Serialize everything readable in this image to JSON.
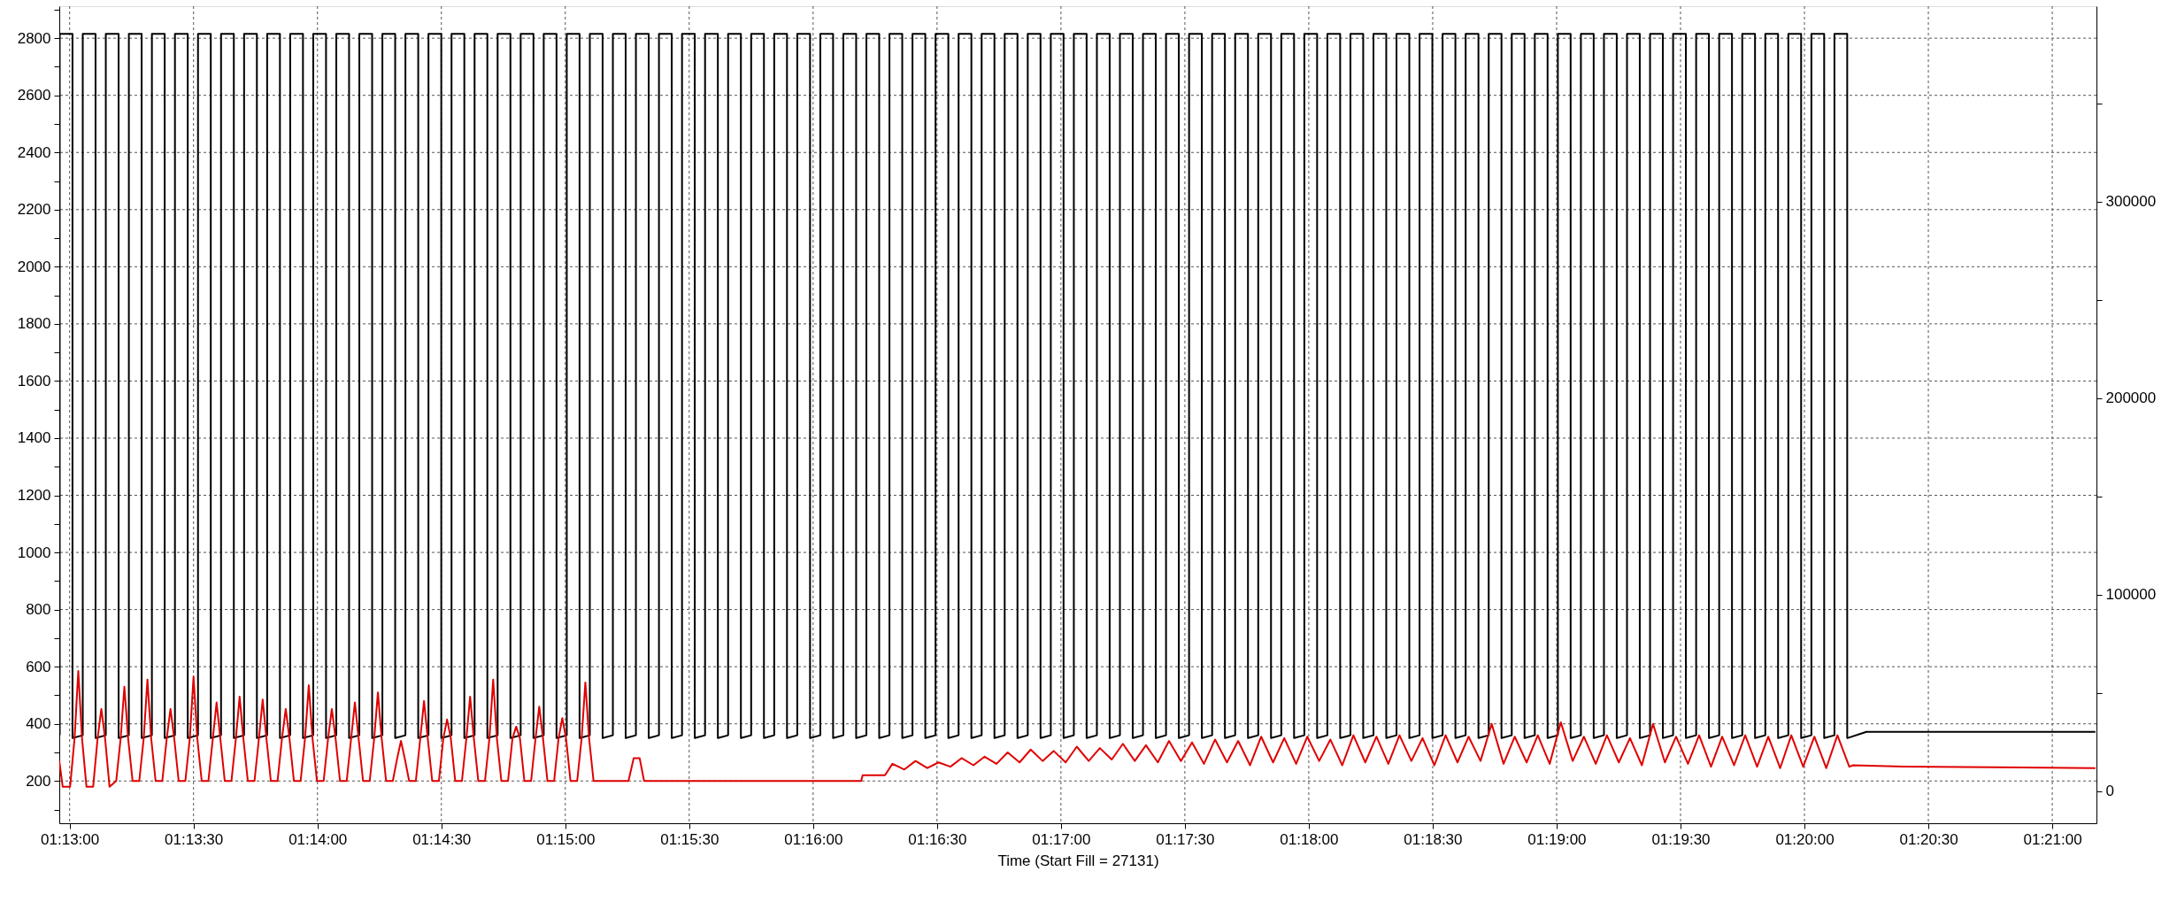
{
  "chart_data": {
    "type": "line",
    "xlabel": "Time (Start Fill = 27131)",
    "xlim": [
      1.215972,
      1.352972
    ],
    "xticks": [
      {
        "value": 1.2166667,
        "label": "01:13:00"
      },
      {
        "value": 1.225,
        "label": "01:13:30"
      },
      {
        "value": 1.2333333,
        "label": "01:14:00"
      },
      {
        "value": 1.2416667,
        "label": "01:14:30"
      },
      {
        "value": 1.25,
        "label": "01:15:00"
      },
      {
        "value": 1.2583333,
        "label": "01:15:30"
      },
      {
        "value": 1.2666667,
        "label": "01:16:00"
      },
      {
        "value": 1.275,
        "label": "01:16:30"
      },
      {
        "value": 1.2833333,
        "label": "01:17:00"
      },
      {
        "value": 1.2916667,
        "label": "01:17:30"
      },
      {
        "value": 1.3,
        "label": "01:18:00"
      },
      {
        "value": 1.3083333,
        "label": "01:18:30"
      },
      {
        "value": 1.3166667,
        "label": "01:19:00"
      },
      {
        "value": 1.325,
        "label": "01:19:30"
      },
      {
        "value": 1.3333333,
        "label": "01:20:00"
      },
      {
        "value": 1.3416667,
        "label": "01:20:30"
      },
      {
        "value": 1.35,
        "label": "01:21:00"
      }
    ],
    "ylim": [
      52,
      2912
    ],
    "yticks": [
      {
        "value": 100,
        "label": null
      },
      200,
      {
        "value": 300,
        "label": null
      },
      400,
      {
        "value": 500,
        "label": null
      },
      600,
      {
        "value": 700,
        "label": null
      },
      800,
      {
        "value": 900,
        "label": null
      },
      1000,
      {
        "value": 1100,
        "label": null
      },
      1200,
      {
        "value": 1300,
        "label": null
      },
      1400,
      {
        "value": 1500,
        "label": null
      },
      1600,
      {
        "value": 1700,
        "label": null
      },
      1800,
      {
        "value": 1900,
        "label": null
      },
      2000,
      {
        "value": 2100,
        "label": null
      },
      2200,
      {
        "value": 2300,
        "label": null
      },
      2400,
      {
        "value": 2500,
        "label": null
      },
      2600,
      {
        "value": 2700,
        "label": null
      },
      2800,
      {
        "value": 2900,
        "label": null
      }
    ],
    "y2lim": [
      -16250,
      399500
    ],
    "y2ticks": [
      0,
      {
        "value": 50000,
        "label": null
      },
      100000,
      {
        "value": 150000,
        "label": null
      },
      200000,
      {
        "value": 250000,
        "label": null
      },
      300000,
      {
        "value": 350000,
        "label": null
      }
    ],
    "grid": true,
    "series": [
      {
        "color": "#000000",
        "x": [
          1.216,
          1.216,
          1.21686,
          1.21686,
          1.21755,
          1.21755,
          1.21841,
          1.21841,
          1.2191,
          1.2191,
          1.21996,
          1.21996,
          1.22065,
          1.22065,
          1.22151,
          1.22151,
          1.2222,
          1.2222,
          1.22306,
          1.22306,
          1.22375,
          1.22375,
          1.22461,
          1.22461,
          1.2253,
          1.2253,
          1.22616,
          1.22616,
          1.22685,
          1.22685,
          1.22771,
          1.22771,
          1.2284,
          1.2284,
          1.22926,
          1.22926,
          1.22995,
          1.22995,
          1.23081,
          1.23081,
          1.2315,
          1.2315,
          1.23236,
          1.23236,
          1.23305,
          1.23305,
          1.23391,
          1.23391,
          1.2346,
          1.2346,
          1.23546,
          1.23546,
          1.23615,
          1.23615,
          1.23701,
          1.23701,
          1.2377,
          1.2377,
          1.23856,
          1.23856,
          1.23925,
          1.23925,
          1.24011,
          1.24011,
          1.2408,
          1.2408,
          1.24166,
          1.24166,
          1.24235,
          1.24235,
          1.24321,
          1.24321,
          1.2439,
          1.2439,
          1.24476,
          1.24476,
          1.24545,
          1.24545,
          1.24631,
          1.24631,
          1.247,
          1.247,
          1.24786,
          1.24786,
          1.24855,
          1.24855,
          1.24941,
          1.24941,
          1.2501,
          1.2501,
          1.25096,
          1.25096,
          1.25165,
          1.25165,
          1.25251,
          1.25251,
          1.2532,
          1.2532,
          1.25406,
          1.25406,
          1.25475,
          1.25475,
          1.25561,
          1.25561,
          1.2563,
          1.2563,
          1.25716,
          1.25716,
          1.25785,
          1.25785,
          1.25871,
          1.25871,
          1.2594,
          1.2594,
          1.26026,
          1.26026,
          1.26095,
          1.26095,
          1.26181,
          1.26181,
          1.2625,
          1.2625,
          1.26336,
          1.26336,
          1.26405,
          1.26405,
          1.26491,
          1.26491,
          1.2656,
          1.2656,
          1.26646,
          1.26646,
          1.26715,
          1.26715,
          1.26801,
          1.26801,
          1.2687,
          1.2687,
          1.26956,
          1.26956,
          1.27025,
          1.27025,
          1.27111,
          1.27111,
          1.2718,
          1.2718,
          1.27266,
          1.27266,
          1.27335,
          1.27335,
          1.27421,
          1.27421,
          1.2749,
          1.2749,
          1.27576,
          1.27576,
          1.27645,
          1.27645,
          1.27731,
          1.27731,
          1.278,
          1.278,
          1.27886,
          1.27886,
          1.27955,
          1.27955,
          1.28041,
          1.28041,
          1.2811,
          1.2811,
          1.28196,
          1.28196,
          1.28265,
          1.28265,
          1.28351,
          1.28351,
          1.2842,
          1.2842,
          1.28506,
          1.28506,
          1.28575,
          1.28575,
          1.28661,
          1.28661,
          1.2873,
          1.2873,
          1.28816,
          1.28816,
          1.28885,
          1.28885,
          1.28971,
          1.28971,
          1.2904,
          1.2904,
          1.29126,
          1.29126,
          1.29195,
          1.29195,
          1.29281,
          1.29281,
          1.2935,
          1.2935,
          1.29436,
          1.29436,
          1.29505,
          1.29505,
          1.29591,
          1.29591,
          1.2966,
          1.2966,
          1.29746,
          1.29746,
          1.29815,
          1.29815,
          1.29901,
          1.29901,
          1.2997,
          1.2997,
          1.30056,
          1.30056,
          1.30125,
          1.30125,
          1.30211,
          1.30211,
          1.3028,
          1.3028,
          1.30366,
          1.30366,
          1.30435,
          1.30435,
          1.30521,
          1.30521,
          1.3059,
          1.3059,
          1.30676,
          1.30676,
          1.30745,
          1.30745,
          1.30831,
          1.30831,
          1.309,
          1.309,
          1.30986,
          1.30986,
          1.31055,
          1.31055,
          1.31141,
          1.31141,
          1.3121,
          1.3121,
          1.31296,
          1.31296,
          1.31365,
          1.31365,
          1.31451,
          1.31451,
          1.3152,
          1.3152,
          1.31606,
          1.31606,
          1.31675,
          1.31675,
          1.31761,
          1.31761,
          1.3183,
          1.3183,
          1.31916,
          1.31916,
          1.31985,
          1.31985,
          1.32071,
          1.32071,
          1.3214,
          1.3214,
          1.32226,
          1.32226,
          1.32295,
          1.32295,
          1.32381,
          1.32381,
          1.3245,
          1.3245,
          1.32536,
          1.32536,
          1.32605,
          1.32605,
          1.32691,
          1.32691,
          1.3276,
          1.3276,
          1.32846,
          1.32846,
          1.32915,
          1.32915,
          1.33001,
          1.33001,
          1.3307,
          1.3307,
          1.33156,
          1.33156,
          1.33225,
          1.33225,
          1.33311,
          1.33311,
          1.3338,
          1.3338,
          1.33466,
          1.33466,
          1.33535,
          1.33535,
          1.33621,
          1.33621,
          1.3375,
          1.3529
        ],
        "values": [
          360,
          2815,
          2815,
          350,
          360,
          2815,
          2815,
          350,
          360,
          2815,
          2815,
          350,
          360,
          2815,
          2815,
          350,
          360,
          2815,
          2815,
          350,
          360,
          2815,
          2815,
          350,
          360,
          2815,
          2815,
          350,
          360,
          2815,
          2815,
          350,
          360,
          2815,
          2815,
          350,
          360,
          2815,
          2815,
          350,
          360,
          2815,
          2815,
          350,
          360,
          2815,
          2815,
          350,
          360,
          2815,
          2815,
          350,
          360,
          2815,
          2815,
          350,
          360,
          2815,
          2815,
          350,
          360,
          2815,
          2815,
          350,
          360,
          2815,
          2815,
          350,
          360,
          2815,
          2815,
          350,
          360,
          2815,
          2815,
          350,
          360,
          2815,
          2815,
          350,
          360,
          2815,
          2815,
          350,
          360,
          2815,
          2815,
          350,
          360,
          2815,
          2815,
          350,
          360,
          2815,
          2815,
          350,
          360,
          2815,
          2815,
          350,
          360,
          2815,
          2815,
          350,
          360,
          2815,
          2815,
          350,
          360,
          2815,
          2815,
          350,
          360,
          2815,
          2815,
          350,
          360,
          2815,
          2815,
          350,
          360,
          2815,
          2815,
          350,
          360,
          2815,
          2815,
          350,
          360,
          2815,
          2815,
          350,
          360,
          2815,
          2815,
          350,
          360,
          2815,
          2815,
          350,
          360,
          2815,
          2815,
          350,
          360,
          2815,
          2815,
          350,
          360,
          2815,
          2815,
          350,
          360,
          2815,
          2815,
          350,
          360,
          2815,
          2815,
          350,
          360,
          2815,
          2815,
          350,
          360,
          2815,
          2815,
          350,
          360,
          2815,
          2815,
          350,
          360,
          2815,
          2815,
          350,
          360,
          2815,
          2815,
          350,
          360,
          2815,
          2815,
          350,
          360,
          2815,
          2815,
          350,
          360,
          2815,
          2815,
          350,
          360,
          2815,
          2815,
          350,
          360,
          2815,
          2815,
          350,
          360,
          2815,
          2815,
          350,
          360,
          2815,
          2815,
          350,
          360,
          2815,
          2815,
          350,
          360,
          2815,
          2815,
          350,
          360,
          2815,
          2815,
          350,
          360,
          2815,
          2815,
          350,
          360,
          2815,
          2815,
          350,
          360,
          2815,
          2815,
          350,
          360,
          2815,
          2815,
          350,
          360,
          2815,
          2815,
          350,
          360,
          2815,
          2815,
          350,
          360,
          2815,
          2815,
          350,
          360,
          2815,
          2815,
          350,
          360,
          2815,
          2815,
          350,
          360,
          2815,
          2815,
          350,
          360,
          2815,
          2815,
          350,
          360,
          2815,
          2815,
          350,
          360,
          2815,
          2815,
          350,
          360,
          2815,
          2815,
          350,
          360,
          2815,
          2815,
          350,
          360,
          2815,
          2815,
          350,
          360,
          2815,
          2815,
          350,
          360,
          2815,
          2815,
          350,
          360,
          2815,
          2815,
          350,
          360,
          2815,
          2815,
          350,
          360,
          2815,
          2815,
          350,
          360,
          2815,
          2815,
          350,
          360,
          2815,
          2815,
          350,
          372,
          372
        ]
      },
      {
        "color": "#e00000",
        "x": [
          1.215972,
          1.2162,
          1.2167,
          1.217,
          1.21725,
          1.2175,
          1.2178,
          1.21825,
          1.21855,
          1.2188,
          1.21905,
          1.21935,
          1.2198,
          1.2201,
          1.22035,
          1.2206,
          1.2209,
          1.22135,
          1.22165,
          1.2219,
          1.22215,
          1.22245,
          1.2229,
          1.2232,
          1.22345,
          1.2237,
          1.224,
          1.22445,
          1.22475,
          1.225,
          1.22525,
          1.22555,
          1.226,
          1.2263,
          1.22655,
          1.2268,
          1.2271,
          1.22755,
          1.22785,
          1.2281,
          1.22835,
          1.22865,
          1.2291,
          1.2294,
          1.22965,
          1.2299,
          1.2302,
          1.23065,
          1.23095,
          1.2312,
          1.23145,
          1.23175,
          1.2322,
          1.2325,
          1.23275,
          1.233,
          1.2333,
          1.23375,
          1.23405,
          1.2343,
          1.23455,
          1.23485,
          1.2353,
          1.2356,
          1.23585,
          1.2361,
          1.2364,
          1.23685,
          1.23715,
          1.2374,
          1.23765,
          1.23795,
          1.2384,
          1.2387,
          1.23895,
          1.2392,
          1.2395,
          1.23995,
          1.24025,
          1.2405,
          1.24075,
          1.24105,
          1.2415,
          1.2418,
          1.24205,
          1.2423,
          1.2426,
          1.24305,
          1.24335,
          1.2436,
          1.24385,
          1.24415,
          1.2446,
          1.2449,
          1.24515,
          1.2454,
          1.2457,
          1.24615,
          1.24645,
          1.2467,
          1.24695,
          1.24725,
          1.2477,
          1.248,
          1.24825,
          1.2485,
          1.2488,
          1.24925,
          1.24955,
          1.2498,
          1.25005,
          1.25035,
          1.2508,
          1.2511,
          1.25135,
          1.2516,
          1.2519,
          1.25425,
          1.2546,
          1.255,
          1.2553,
          1.2699,
          1.27,
          1.2715,
          1.272,
          1.2728,
          1.27355,
          1.27435,
          1.2751,
          1.2759,
          1.27665,
          1.27745,
          1.2782,
          1.279,
          1.27975,
          1.28055,
          1.2813,
          1.2821,
          1.28285,
          1.28365,
          1.2844,
          1.2852,
          1.28595,
          1.28675,
          1.2875,
          1.2883,
          1.28905,
          1.28985,
          1.2906,
          1.2914,
          1.29215,
          1.29295,
          1.2937,
          1.2945,
          1.29525,
          1.29605,
          1.2968,
          1.2976,
          1.29835,
          1.29915,
          1.2999,
          1.3007,
          1.30145,
          1.30225,
          1.303,
          1.3038,
          1.30455,
          1.30535,
          1.3061,
          1.3069,
          1.30765,
          1.30845,
          1.3092,
          1.31,
          1.31075,
          1.31155,
          1.3123,
          1.3131,
          1.31385,
          1.31465,
          1.3154,
          1.3162,
          1.31695,
          1.31775,
          1.3185,
          1.3193,
          1.32005,
          1.32085,
          1.3216,
          1.3224,
          1.32315,
          1.32395,
          1.3247,
          1.3255,
          1.32625,
          1.32705,
          1.3278,
          1.3286,
          1.32935,
          1.33015,
          1.3309,
          1.3317,
          1.33245,
          1.33325,
          1.334,
          1.3348,
          1.33555,
          1.33635,
          1.3366,
          1.34,
          1.3529
        ],
        "values": [
          270,
          180,
          180,
          350,
          585,
          350,
          180,
          180,
          350,
          452,
          350,
          180,
          200,
          350,
          530,
          350,
          200,
          200,
          350,
          555,
          350,
          200,
          200,
          350,
          452,
          350,
          200,
          200,
          350,
          565,
          350,
          200,
          200,
          350,
          475,
          350,
          200,
          200,
          350,
          495,
          350,
          200,
          200,
          350,
          485,
          350,
          200,
          200,
          350,
          452,
          350,
          200,
          200,
          350,
          535,
          350,
          200,
          200,
          350,
          452,
          350,
          200,
          200,
          350,
          475,
          350,
          200,
          200,
          350,
          510,
          350,
          200,
          200,
          280,
          340,
          280,
          200,
          200,
          350,
          480,
          350,
          200,
          200,
          350,
          415,
          350,
          200,
          200,
          350,
          495,
          350,
          200,
          200,
          350,
          555,
          350,
          200,
          200,
          350,
          390,
          350,
          200,
          200,
          350,
          460,
          350,
          200,
          200,
          350,
          420,
          350,
          200,
          200,
          350,
          545,
          350,
          200,
          200,
          280,
          280,
          200,
          200,
          220,
          220,
          260,
          240,
          270,
          245,
          265,
          250,
          280,
          255,
          285,
          260,
          300,
          265,
          310,
          270,
          305,
          265,
          320,
          270,
          315,
          275,
          330,
          270,
          325,
          265,
          340,
          270,
          335,
          260,
          345,
          265,
          340,
          255,
          355,
          265,
          350,
          260,
          355,
          270,
          345,
          255,
          360,
          265,
          355,
          260,
          360,
          270,
          350,
          255,
          360,
          265,
          355,
          270,
          400,
          260,
          355,
          265,
          360,
          260,
          405,
          270,
          355,
          260,
          360,
          265,
          350,
          255,
          400,
          265,
          355,
          260,
          360,
          250,
          355,
          255,
          360,
          250,
          355,
          245,
          360,
          250,
          355,
          245,
          360,
          250,
          255,
          250,
          245
        ]
      }
    ]
  }
}
